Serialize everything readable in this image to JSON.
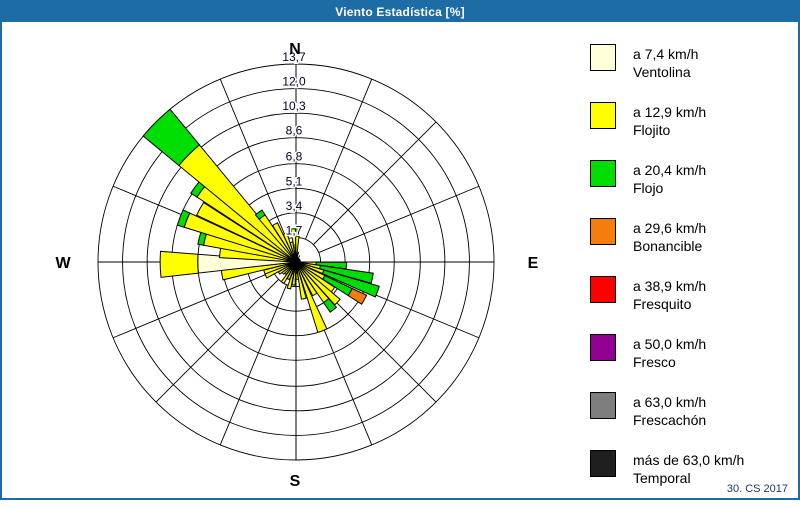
{
  "window": {
    "title": "Viento Estadística [%]",
    "footer": "30. CS 2017"
  },
  "colors": {
    "titlebar": "#1D6CA5",
    "grid": "#000000",
    "cream": "#FFFFD8",
    "yellow": "#FFFF00",
    "green": "#00DD00",
    "orange": "#F47D0B",
    "red": "#FF0000",
    "purple": "#910090",
    "gray": "#7E7E7E",
    "dark": "#1F1F1F"
  },
  "legend": {
    "items": [
      {
        "speed": "a 7,4 km/h",
        "name": "Ventolina",
        "color": "cream"
      },
      {
        "speed": "a 12,9 km/h",
        "name": "Flojito",
        "color": "yellow"
      },
      {
        "speed": "a 20,4 km/h",
        "name": "Flojo",
        "color": "green"
      },
      {
        "speed": "a 29,6 km/h",
        "name": "Bonancible",
        "color": "orange"
      },
      {
        "speed": "a 38,9 km/h",
        "name": "Fresquito",
        "color": "red"
      },
      {
        "speed": "a 50,0 km/h",
        "name": "Fresco",
        "color": "purple"
      },
      {
        "speed": "a 63,0 km/h",
        "name": "Frescachón",
        "color": "gray"
      },
      {
        "speed": "más de 63,0 km/h",
        "name": "Temporal",
        "color": "dark"
      }
    ]
  },
  "chart_data": {
    "type": "windrose-polar-bar",
    "units": "%",
    "title": "Viento Estadística [%]",
    "compass": {
      "n": "N",
      "e": "E",
      "s": "S",
      "w": "W"
    },
    "max": 13.7,
    "ring_values": [
      1.7,
      3.4,
      5.1,
      6.8,
      8.6,
      10.3,
      12.0,
      13.7
    ],
    "ring_labels": [
      "1,7",
      "3,4",
      "5,1",
      "6,8",
      "8,6",
      "10,3",
      "12,0",
      "13,7"
    ],
    "sectors": 16,
    "petal_width_deg": 7.5,
    "petals": [
      {
        "dir": 252,
        "segments": [
          {
            "c": "yellow",
            "to": 2.3
          }
        ]
      },
      {
        "dir": 260,
        "segments": [
          {
            "c": "yellow",
            "to": 5.2
          }
        ]
      },
      {
        "dir": 269,
        "w": 11,
        "segments": [
          {
            "c": "cream",
            "to": 6.8
          },
          {
            "c": "yellow",
            "to": 9.4
          }
        ]
      },
      {
        "dir": 277,
        "segments": [
          {
            "c": "yellow",
            "to": 5.3
          }
        ]
      },
      {
        "dir": 284,
        "segments": [
          {
            "c": "yellow",
            "to": 6.5
          },
          {
            "c": "green",
            "to": 6.9
          }
        ]
      },
      {
        "dir": 291,
        "segments": [
          {
            "c": "yellow",
            "to": 8.1
          },
          {
            "c": "green",
            "to": 8.6
          }
        ]
      },
      {
        "dir": 299,
        "segments": [
          {
            "c": "yellow",
            "to": 7.6
          }
        ]
      },
      {
        "dir": 307,
        "segments": [
          {
            "c": "yellow",
            "to": 8.2
          },
          {
            "c": "green",
            "to": 8.7
          }
        ]
      },
      {
        "dir": 315,
        "w": 11,
        "segments": [
          {
            "c": "yellow",
            "to": 10.5
          },
          {
            "c": "green",
            "to": 13.7
          }
        ]
      },
      {
        "dir": 323,
        "segments": [
          {
            "c": "yellow",
            "to": 3.9
          },
          {
            "c": "green",
            "to": 4.3
          }
        ]
      },
      {
        "dir": 331,
        "segments": [
          {
            "c": "yellow",
            "to": 3.0
          }
        ]
      },
      {
        "dir": 339,
        "segments": [
          {
            "c": "yellow",
            "to": 2.1
          }
        ]
      },
      {
        "dir": 347,
        "segments": [
          {
            "c": "yellow",
            "to": 1.4
          }
        ]
      },
      {
        "dir": 355,
        "segments": [
          {
            "c": "yellow",
            "to": 2.3
          }
        ]
      },
      {
        "dir": 3,
        "segments": [
          {
            "c": "yellow",
            "to": 1.8
          },
          {
            "c": "green",
            "to": 2.5
          }
        ]
      },
      {
        "dir": 94,
        "segments": [
          {
            "c": "yellow",
            "to": 1.4
          },
          {
            "c": "green",
            "to": 3.5
          }
        ]
      },
      {
        "dir": 102,
        "segments": [
          {
            "c": "yellow",
            "to": 1.7
          },
          {
            "c": "green",
            "to": 5.4
          }
        ]
      },
      {
        "dir": 110,
        "segments": [
          {
            "c": "yellow",
            "to": 2.0
          },
          {
            "c": "green",
            "to": 6.0
          }
        ]
      },
      {
        "dir": 119,
        "segments": [
          {
            "c": "yellow",
            "to": 2.2
          },
          {
            "c": "green",
            "to": 4.3
          },
          {
            "c": "orange",
            "to": 5.4
          }
        ]
      },
      {
        "dir": 127,
        "segments": [
          {
            "c": "yellow",
            "to": 3.2
          }
        ]
      },
      {
        "dir": 134,
        "segments": [
          {
            "c": "yellow",
            "to": 4.0
          }
        ]
      },
      {
        "dir": 142,
        "segments": [
          {
            "c": "yellow",
            "to": 3.4
          },
          {
            "c": "green",
            "to": 4.2
          }
        ]
      },
      {
        "dir": 150,
        "segments": [
          {
            "c": "yellow",
            "to": 2.6
          }
        ]
      },
      {
        "dir": 159,
        "segments": [
          {
            "c": "yellow",
            "to": 5.1
          }
        ]
      },
      {
        "dir": 168,
        "segments": [
          {
            "c": "yellow",
            "to": 2.6
          }
        ]
      },
      {
        "dir": 176,
        "segments": [
          {
            "c": "yellow",
            "to": 1.2
          }
        ]
      },
      {
        "dir": 186,
        "segments": [
          {
            "c": "yellow",
            "to": 1.6
          }
        ]
      },
      {
        "dir": 195,
        "segments": [
          {
            "c": "yellow",
            "to": 1.9
          }
        ]
      },
      {
        "dir": 204,
        "segments": [
          {
            "c": "yellow",
            "to": 1.3
          }
        ]
      },
      {
        "dir": 213,
        "segments": [
          {
            "c": "yellow",
            "to": 1.7
          }
        ]
      },
      {
        "dir": 222,
        "segments": [
          {
            "c": "yellow",
            "to": 1.1
          }
        ]
      },
      {
        "dir": 229,
        "segments": [
          {
            "c": "yellow",
            "to": 1.2
          }
        ]
      },
      {
        "dir": 237,
        "segments": [
          {
            "c": "yellow",
            "to": 1.4
          }
        ]
      },
      {
        "dir": 245,
        "segments": [
          {
            "c": "yellow",
            "to": 2.3
          }
        ]
      }
    ],
    "center_spikes": [
      {
        "dir": 358,
        "to": 1.2
      },
      {
        "dir": 14,
        "to": 0.7
      },
      {
        "dir": 30,
        "to": 0.5
      },
      {
        "dir": 90,
        "to": 0.5
      },
      {
        "dir": 130,
        "to": 0.5
      },
      {
        "dir": 178,
        "to": 0.8
      },
      {
        "dir": 198,
        "to": 0.9
      },
      {
        "dir": 215,
        "to": 0.6
      },
      {
        "dir": 262,
        "to": 0.5
      },
      {
        "dir": 310,
        "to": 0.5
      }
    ]
  }
}
